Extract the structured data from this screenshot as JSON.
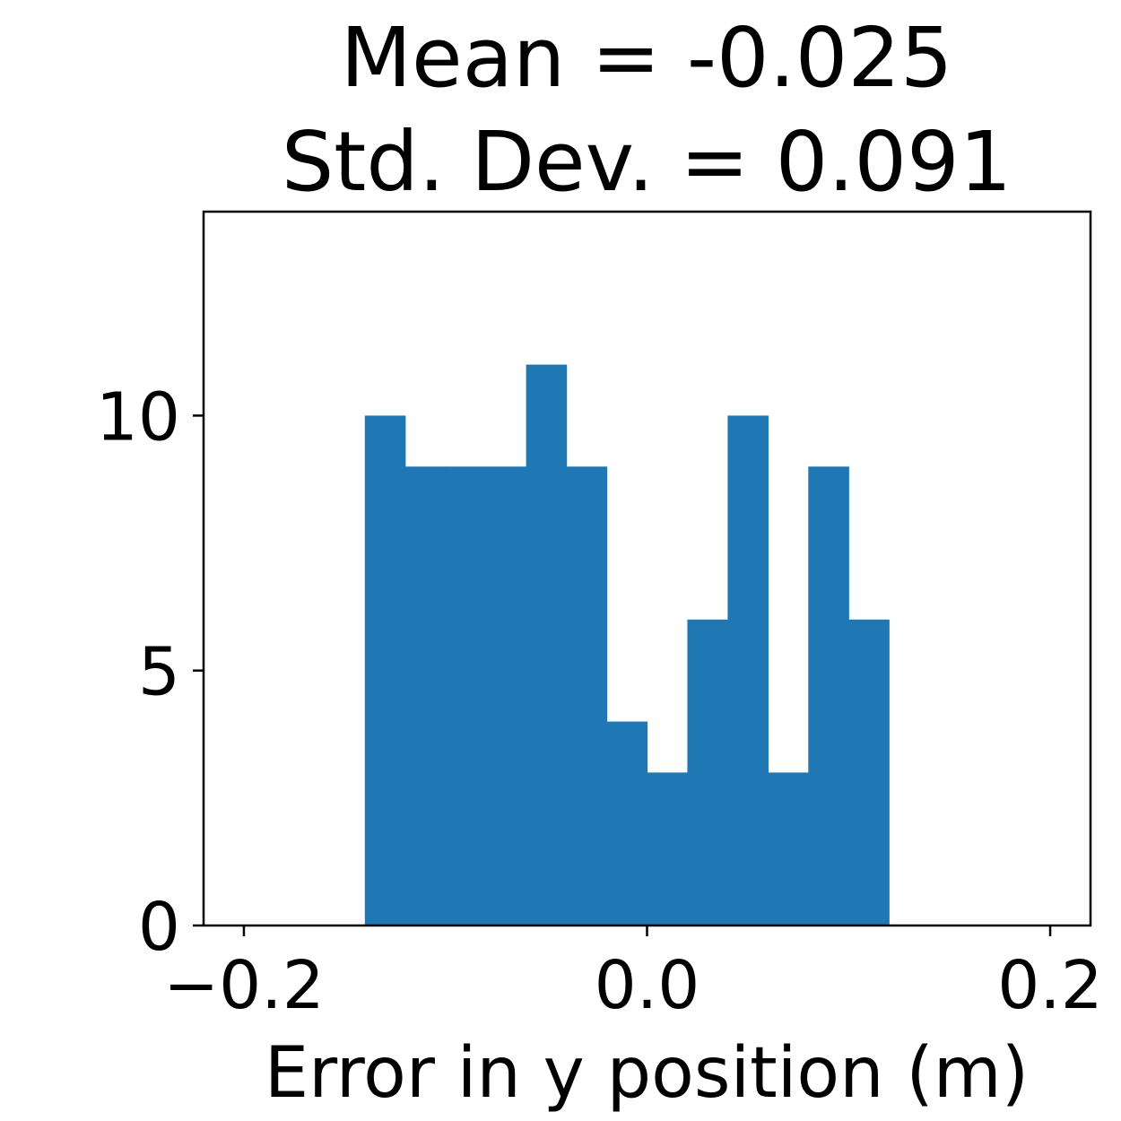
{
  "chart_data": {
    "type": "bar",
    "title": [
      "Mean = -0.025",
      "Std. Dev. = 0.091"
    ],
    "xlabel": "Error in y position (m)",
    "ylabel": "",
    "bin_edges": [
      -0.14,
      -0.12,
      -0.1,
      -0.08,
      -0.06,
      -0.04,
      -0.02,
      0.0,
      0.02,
      0.04,
      0.06,
      0.08,
      0.1,
      0.12
    ],
    "values": [
      10,
      9,
      9,
      9,
      11,
      9,
      4,
      3,
      6,
      10,
      3,
      9,
      6
    ],
    "xlim": [
      -0.22,
      0.22
    ],
    "ylim": [
      0,
      14
    ],
    "x_ticks": [
      -0.2,
      0.0,
      0.2
    ],
    "x_tick_labels": [
      "−0.2",
      "0.0",
      "0.2"
    ],
    "y_ticks": [
      0,
      5,
      10
    ],
    "y_tick_labels": [
      "0",
      "5",
      "10"
    ],
    "bar_color": "#1f77b4",
    "grid": false,
    "legend": "none"
  }
}
